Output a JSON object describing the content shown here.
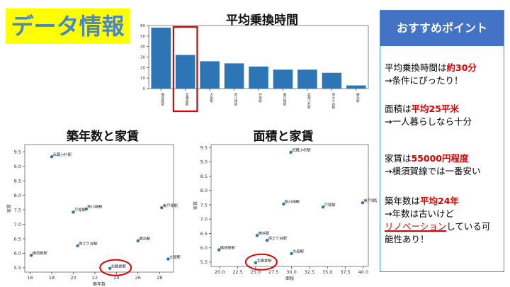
{
  "slide_title": "データ情報",
  "colors": {
    "bar": "#2e75b6",
    "point": "#2e75b6",
    "highlight": "#e00000",
    "panel_head": "#4472c4",
    "title_bg": "#ffff00",
    "title_text": "#4a86c8"
  },
  "panel": {
    "heading": "おすすめポイント",
    "p1": {
      "a": "平均乗換時間は",
      "b": "約30分",
      "c": "→条件にぴったり！"
    },
    "p2": {
      "a": "面積は",
      "b": "平均25平米",
      "c": "→一人暮らしなら十分"
    },
    "p3": {
      "a": "家賃は",
      "b": "55000円程度",
      "c": "→横須賀線では一番安い"
    },
    "p4": {
      "a": "築年数は",
      "b": "平均24年",
      "c": "→年数は古いけど",
      "d": "リノベーション",
      "e": "している可",
      "f": "能性あり！"
    }
  },
  "chart_data": [
    {
      "type": "bar",
      "title": "平均乗換時間",
      "categories": [
        "横須賀駅",
        "北鎌倉駅",
        "大船駅",
        "新川崎駅",
        "戸塚駅",
        "東戸塚駅",
        "武蔵小杉駅",
        "保土ケ谷駅",
        "横浜駅"
      ],
      "values": [
        58,
        32,
        26,
        24,
        21,
        18,
        18,
        15,
        3
      ],
      "ylim": [
        0,
        60
      ],
      "yticks": [
        0,
        10,
        20,
        30,
        40,
        50,
        60
      ],
      "highlight_category": "北鎌倉駅"
    },
    {
      "type": "scatter",
      "title": "築年数と家賃",
      "xlabel": "築年数",
      "ylabel": "家賃",
      "xlim": [
        15.5,
        29.3
      ],
      "ylim": [
        5.35,
        9.75
      ],
      "xticks": [
        16,
        18,
        20,
        22,
        24,
        26,
        28
      ],
      "yticks": [
        5.5,
        6.0,
        6.5,
        7.0,
        7.5,
        8.0,
        8.5,
        9.0,
        9.5
      ],
      "points": [
        {
          "label": "武蔵小杉駅",
          "x": 18.0,
          "y": 9.33
        },
        {
          "label": "新川崎駅",
          "x": 21.2,
          "y": 7.53
        },
        {
          "label": "戸塚駅",
          "x": 20.0,
          "y": 7.42
        },
        {
          "label": "東戸塚駅",
          "x": 28.2,
          "y": 7.57
        },
        {
          "label": "横浜駅",
          "x": 26.0,
          "y": 6.43
        },
        {
          "label": "保土ケ谷駅",
          "x": 20.4,
          "y": 6.26
        },
        {
          "label": "横須賀駅",
          "x": 16.1,
          "y": 5.93
        },
        {
          "label": "大船駅",
          "x": 28.8,
          "y": 5.8
        },
        {
          "label": "北鎌倉駅",
          "x": 23.4,
          "y": 5.48
        }
      ],
      "highlight_point": "北鎌倉駅"
    },
    {
      "type": "scatter",
      "title": "面積と家賃",
      "xlabel": "面積",
      "ylabel": "家賃",
      "xlim": [
        18.8,
        40.7
      ],
      "ylim": [
        5.35,
        9.6
      ],
      "xticks": [
        20.0,
        22.5,
        25.0,
        27.5,
        30.0,
        32.5,
        35.0,
        37.5,
        40.0
      ],
      "yticks": [
        5.5,
        6.0,
        6.5,
        7.0,
        7.5,
        8.0,
        8.5,
        9.0,
        9.5
      ],
      "points": [
        {
          "label": "武蔵小杉駅",
          "x": 29.9,
          "y": 9.33
        },
        {
          "label": "新川崎駅",
          "x": 28.9,
          "y": 7.53
        },
        {
          "label": "戸塚駅",
          "x": 34.4,
          "y": 7.42
        },
        {
          "label": "東戸塚駅",
          "x": 39.9,
          "y": 7.57
        },
        {
          "label": "横浜駅",
          "x": 25.2,
          "y": 6.43
        },
        {
          "label": "保土ケ谷駅",
          "x": 26.6,
          "y": 6.26
        },
        {
          "label": "横須賀駅",
          "x": 19.9,
          "y": 5.93
        },
        {
          "label": "大船駅",
          "x": 30.0,
          "y": 5.8
        },
        {
          "label": "北鎌倉駅",
          "x": 25.0,
          "y": 5.48
        }
      ],
      "highlight_point": "北鎌倉駅"
    }
  ]
}
